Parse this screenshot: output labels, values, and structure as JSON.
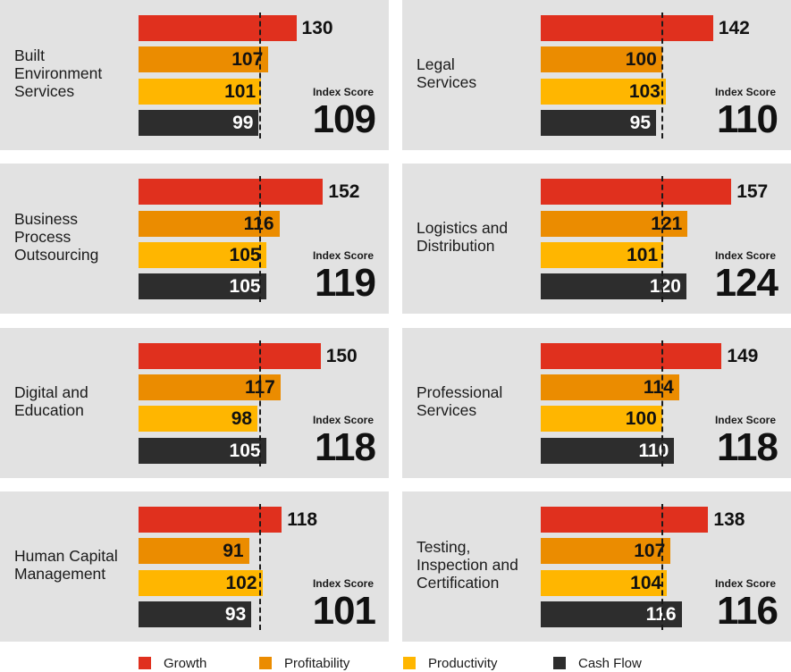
{
  "chart_data": {
    "type": "bar",
    "orientation": "horizontal",
    "title": "",
    "value_label_name": "Index Score",
    "reference_value": 100,
    "series": [
      {
        "name": "Growth",
        "color": "#e0301e"
      },
      {
        "name": "Profitability",
        "color": "#eb8c00"
      },
      {
        "name": "Productivity",
        "color": "#ffb600"
      },
      {
        "name": "Cash Flow",
        "color": "#2d2d2d"
      }
    ],
    "panels": [
      {
        "sector": "Built\nEnvironment\nServices",
        "values": [
          130,
          107,
          101,
          99
        ],
        "index_score": 109
      },
      {
        "sector": "Legal\nServices",
        "values": [
          142,
          100,
          103,
          95
        ],
        "index_score": 110
      },
      {
        "sector": "Business\nProcess\nOutsourcing",
        "values": [
          152,
          116,
          105,
          105
        ],
        "index_score": 119
      },
      {
        "sector": "Logistics and\nDistribution",
        "values": [
          157,
          121,
          101,
          120
        ],
        "index_score": 124
      },
      {
        "sector": "Digital and\nEducation",
        "values": [
          150,
          117,
          98,
          105
        ],
        "index_score": 118
      },
      {
        "sector": "Professional\nServices",
        "values": [
          149,
          114,
          100,
          110
        ],
        "index_score": 118
      },
      {
        "sector": "Human Capital\nManagement",
        "values": [
          118,
          91,
          102,
          93
        ],
        "index_score": 101
      },
      {
        "sector": "Testing,\nInspection and\nCertification",
        "values": [
          138,
          107,
          104,
          116
        ],
        "index_score": 116
      }
    ]
  }
}
